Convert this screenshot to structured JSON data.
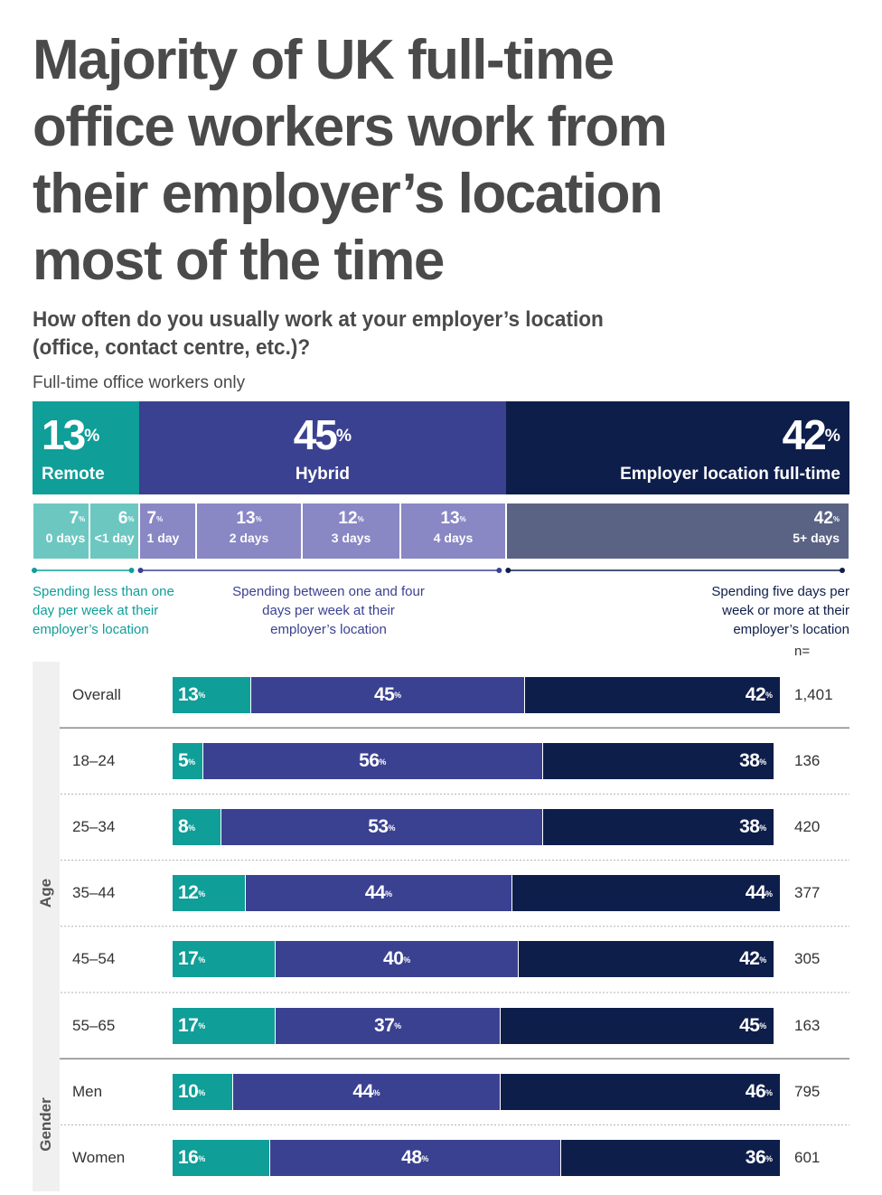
{
  "title": "Majority of UK full-time office workers work from their employer’s location most of the time",
  "question": "How often do you usually work at your employer’s location (office, contact centre, etc.)?",
  "base": "Full-time office workers only",
  "colors": {
    "remote": "#0f9e98",
    "hybrid": "#3b4191",
    "fulltime": "#0e1e4b",
    "remote_light": "#6cc7c1",
    "hybrid_light": "#8a87c5",
    "fulltime_light": "#5b6384",
    "remote_text": "#0f9e98",
    "hybrid_text": "#3b4191",
    "fulltime_text": "#0e1e4b"
  },
  "summary": [
    {
      "key": "remote",
      "value": 13,
      "label": "Remote"
    },
    {
      "key": "hybrid",
      "value": 45,
      "label": "Hybrid"
    },
    {
      "key": "fulltime",
      "value": 42,
      "label": "Employer location full-time"
    }
  ],
  "breakdown": [
    {
      "group": "remote",
      "value": 7,
      "days": "0 days"
    },
    {
      "group": "remote",
      "value": 6,
      "days": "<1 day"
    },
    {
      "group": "hybrid",
      "value": 7,
      "days": "1 day"
    },
    {
      "group": "hybrid",
      "value": 13,
      "days": "2 days"
    },
    {
      "group": "hybrid",
      "value": 12,
      "days": "3 days"
    },
    {
      "group": "hybrid",
      "value": 13,
      "days": "4 days"
    },
    {
      "group": "fulltime",
      "value": 42,
      "days": "5+ days"
    }
  ],
  "notes": {
    "remote": "Spending less than one day per week at their employer’s location",
    "hybrid": "Spending between one and four days per week at their employer’s location",
    "fulltime": "Spending five days per week or more at their employer’s location"
  },
  "n_header": "n=",
  "percent_sign": "%",
  "chart_data": {
    "type": "bar",
    "orientation": "horizontal",
    "stacked": true,
    "series_names": [
      "Remote",
      "Hybrid",
      "Employer location full-time"
    ],
    "groups": [
      {
        "name": "",
        "rows": [
          {
            "label": "Overall",
            "values": [
              13,
              45,
              42
            ],
            "n": "1,401"
          }
        ]
      },
      {
        "name": "Age",
        "rows": [
          {
            "label": "18–24",
            "values": [
              5,
              56,
              38
            ],
            "n": "136"
          },
          {
            "label": "25–34",
            "values": [
              8,
              53,
              38
            ],
            "n": "420"
          },
          {
            "label": "35–44",
            "values": [
              12,
              44,
              44
            ],
            "n": "377"
          },
          {
            "label": "45–54",
            "values": [
              17,
              40,
              42
            ],
            "n": "305"
          },
          {
            "label": "55–65",
            "values": [
              17,
              37,
              45
            ],
            "n": "163"
          }
        ]
      },
      {
        "name": "Gender",
        "rows": [
          {
            "label": "Men",
            "values": [
              10,
              44,
              46
            ],
            "n": "795"
          },
          {
            "label": "Women",
            "values": [
              16,
              48,
              36
            ],
            "n": "601"
          }
        ]
      }
    ]
  }
}
